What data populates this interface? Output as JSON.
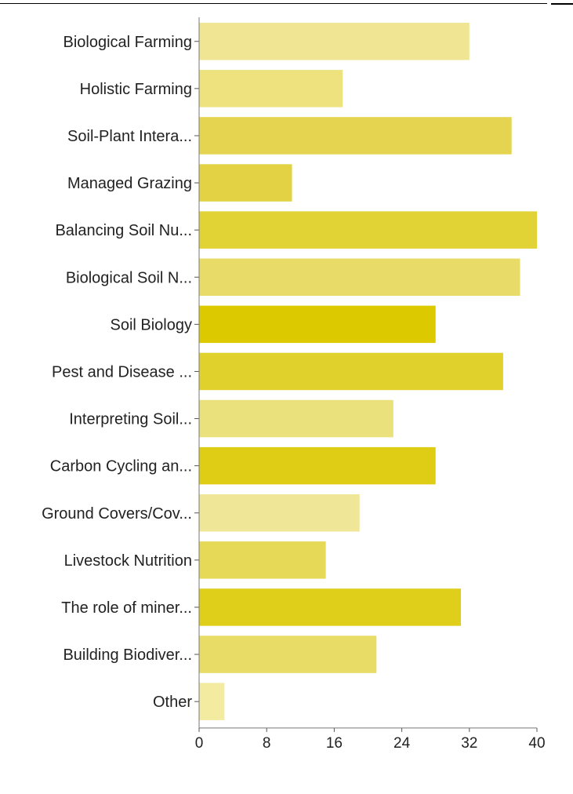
{
  "chart_data": {
    "type": "bar",
    "orientation": "horizontal",
    "categories": [
      "Biological Farming",
      "Holistic Farming",
      "Soil-Plant Intera...",
      "Managed Grazing",
      "Balancing Soil Nu...",
      "Biological Soil N...",
      "Soil Biology",
      "Pest and Disease ...",
      "Interpreting Soil...",
      "Carbon Cycling an...",
      "Ground Covers/Cov...",
      "Livestock Nutrition",
      "The role of miner...",
      "Building Biodiver...",
      "Other"
    ],
    "values": [
      32,
      17,
      37,
      11,
      40,
      38,
      28,
      36,
      23,
      28,
      19,
      15,
      31,
      21,
      3
    ],
    "bar_colors": [
      "#EFE592",
      "#EDE27E",
      "#E5D44F",
      "#E3D344",
      "#E1D236",
      "#E8DB68",
      "#DCC900",
      "#E1D12D",
      "#EAE07C",
      "#DFCC15",
      "#EFE697",
      "#E7D958",
      "#DFCF1B",
      "#E8DB66",
      "#F2EBA0"
    ],
    "xlim": [
      0,
      40
    ],
    "xticks": [
      "0",
      "8",
      "16",
      "24",
      "32",
      "40"
    ],
    "title": "",
    "xlabel": "",
    "ylabel": "",
    "grid": false,
    "legend": "none"
  }
}
